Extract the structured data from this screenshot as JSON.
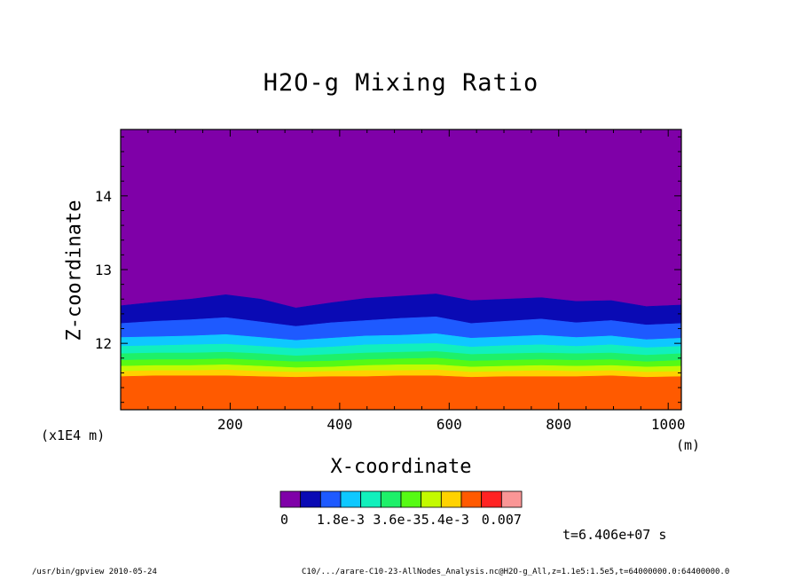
{
  "chart_data": {
    "type": "contour",
    "title": "H2O-g Mixing Ratio",
    "xlabel": "X-coordinate",
    "ylabel": "Z-coordinate",
    "x_unit": "(m)",
    "y_scale_label": "(x1E4 m)",
    "xlim": [
      0,
      1024
    ],
    "ylim": [
      11.1,
      14.9
    ],
    "x_ticks": [
      200,
      400,
      600,
      800,
      1000
    ],
    "y_ticks": [
      12,
      13,
      14
    ],
    "colorbar": {
      "colors": [
        "#7f00a8",
        "#0a0ab4",
        "#1e5aff",
        "#0ec8ff",
        "#11f0bc",
        "#1ef069",
        "#56fa14",
        "#c3fa00",
        "#ffd200",
        "#ff5a00",
        "#ff2323",
        "#fa9696"
      ],
      "tick_labels": [
        "0",
        "1.8e-3",
        "3.6e-3",
        "5.4e-3",
        "0.007"
      ]
    },
    "contours": {
      "x": [
        0,
        64,
        128,
        192,
        256,
        320,
        384,
        448,
        512,
        576,
        640,
        704,
        768,
        832,
        896,
        960,
        1024
      ],
      "levels_z": [
        [
          12.51,
          12.56,
          12.6,
          12.66,
          12.6,
          12.48,
          12.55,
          12.61,
          12.64,
          12.67,
          12.58,
          12.6,
          12.62,
          12.57,
          12.58,
          12.5,
          12.52
        ],
        [
          12.27,
          12.3,
          12.32,
          12.35,
          12.29,
          12.23,
          12.28,
          12.31,
          12.34,
          12.36,
          12.27,
          12.3,
          12.33,
          12.28,
          12.31,
          12.25,
          12.27
        ],
        [
          12.08,
          12.09,
          12.1,
          12.12,
          12.08,
          12.04,
          12.07,
          12.1,
          12.11,
          12.13,
          12.07,
          12.09,
          12.11,
          12.08,
          12.1,
          12.05,
          12.07
        ],
        [
          11.96,
          11.97,
          11.98,
          11.99,
          11.96,
          11.93,
          11.95,
          11.98,
          11.99,
          12.0,
          11.95,
          11.97,
          11.98,
          11.96,
          11.98,
          11.94,
          11.96
        ],
        [
          11.86,
          11.87,
          11.87,
          11.88,
          11.86,
          11.83,
          11.85,
          11.87,
          11.88,
          11.89,
          11.85,
          11.86,
          11.87,
          11.86,
          11.87,
          11.84,
          11.86
        ],
        [
          11.77,
          11.78,
          11.78,
          11.79,
          11.77,
          11.75,
          11.76,
          11.78,
          11.79,
          11.8,
          11.76,
          11.77,
          11.78,
          11.77,
          11.78,
          11.75,
          11.77
        ],
        [
          11.69,
          11.7,
          11.7,
          11.71,
          11.69,
          11.67,
          11.68,
          11.7,
          11.71,
          11.71,
          11.68,
          11.69,
          11.7,
          11.69,
          11.7,
          11.68,
          11.69
        ],
        [
          11.62,
          11.63,
          11.63,
          11.64,
          11.62,
          11.61,
          11.62,
          11.63,
          11.63,
          11.64,
          11.61,
          11.62,
          11.63,
          11.62,
          11.63,
          11.61,
          11.62
        ],
        [
          11.55,
          11.56,
          11.56,
          11.56,
          11.55,
          11.54,
          11.55,
          11.55,
          11.56,
          11.56,
          11.54,
          11.55,
          11.55,
          11.55,
          11.56,
          11.54,
          11.55
        ]
      ],
      "band_colors": [
        "#7f00a8",
        "#0a0ab4",
        "#1e5aff",
        "#0ec8ff",
        "#11f0bc",
        "#1ef069",
        "#56fa14",
        "#c3fa00",
        "#ffd200",
        "#ff5a00"
      ]
    }
  },
  "time_label": "t=6.406e+07 s",
  "footer": {
    "left": "/usr/bin/gpview  2010-05-24",
    "right": "C10/.../arare-C10-23-AllNodes_Analysis.nc@H2O-g_All,z=1.1e5:1.5e5,t=64000000.0:64400000.0"
  }
}
